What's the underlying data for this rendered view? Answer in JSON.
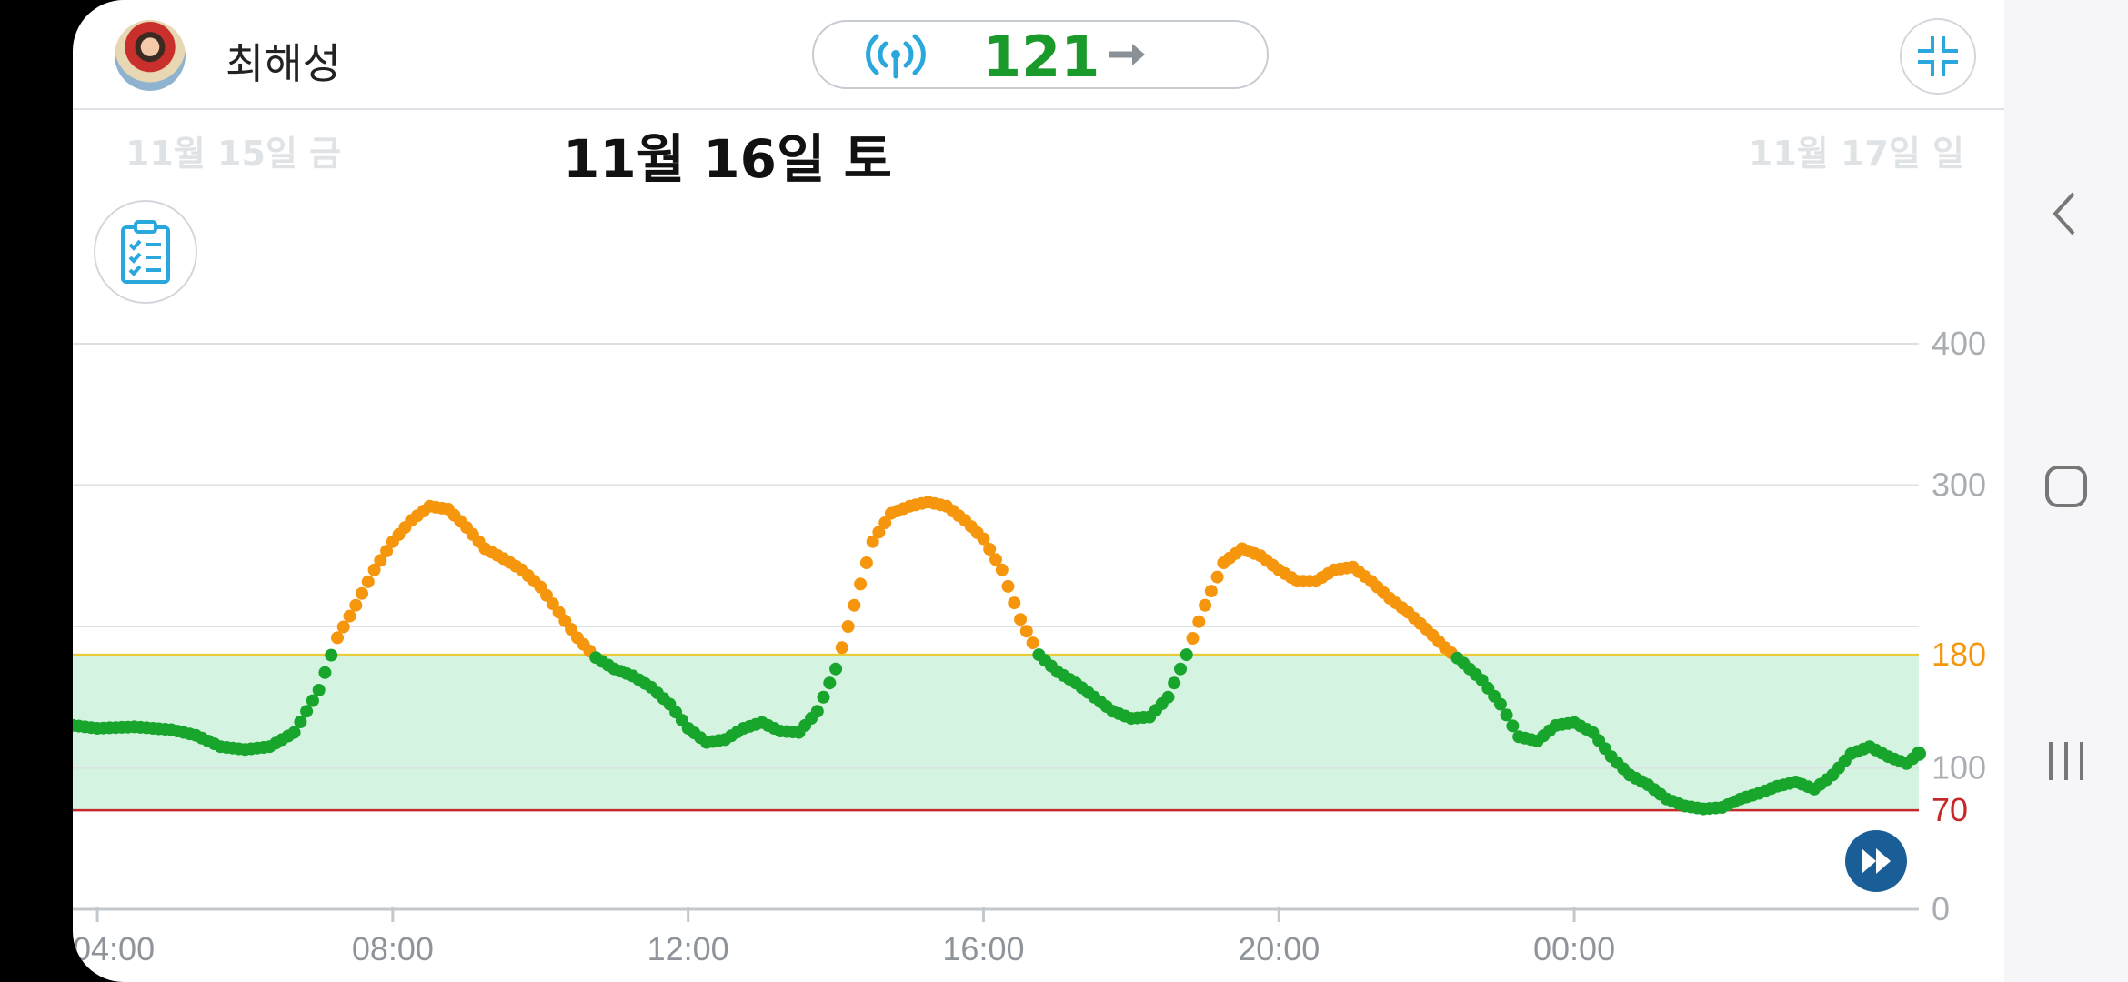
{
  "header": {
    "user_name": "최해성",
    "current_glucose": "121",
    "signal_icon": "signal-broadcast-icon",
    "trend_icon": "trend-arrow-right-icon",
    "collapse_icon": "collapse-fullscreen-icon"
  },
  "date_nav": {
    "prev_label": "11월 15일 금",
    "current_label": "11월 16일 토",
    "next_label": "11월 17일 일"
  },
  "colors": {
    "in_range": "#18a52c",
    "high": "#f5960c",
    "target_band": "#d4f3e0",
    "high_line": "#e8cc3a",
    "low_line": "#c62828",
    "accent_blue": "#1a5e98"
  },
  "chart_data": {
    "type": "scatter",
    "x_start": "03:40",
    "x_end": "03:40 (+1일)",
    "x_ticks": [
      "04:00",
      "08:00",
      "12:00",
      "16:00",
      "20:00",
      "00:00"
    ],
    "y_ticks": [
      "0",
      "70",
      "100",
      "180",
      "300",
      "400"
    ],
    "ylim": [
      0,
      400
    ],
    "target_range": [
      70,
      180
    ],
    "high_threshold": "180",
    "low_threshold": "70",
    "high_threshold_color": "#f5960c",
    "low_threshold_color": "#c62828",
    "series_in_range_color": "#18a52c",
    "series_high_color": "#f5960c",
    "points": [
      [
        "03:40",
        130
      ],
      [
        "04:00",
        128
      ],
      [
        "04:30",
        129
      ],
      [
        "05:00",
        127
      ],
      [
        "05:20",
        123
      ],
      [
        "05:40",
        115
      ],
      [
        "06:00",
        113
      ],
      [
        "06:20",
        115
      ],
      [
        "06:40",
        125
      ],
      [
        "07:00",
        155
      ],
      [
        "07:15",
        192
      ],
      [
        "07:30",
        215
      ],
      [
        "07:45",
        240
      ],
      [
        "08:00",
        260
      ],
      [
        "08:15",
        275
      ],
      [
        "08:30",
        285
      ],
      [
        "08:45",
        283
      ],
      [
        "09:00",
        270
      ],
      [
        "09:15",
        255
      ],
      [
        "09:30",
        248
      ],
      [
        "09:45",
        240
      ],
      [
        "10:00",
        228
      ],
      [
        "10:15",
        210
      ],
      [
        "10:30",
        192
      ],
      [
        "10:45",
        178
      ],
      [
        "11:00",
        170
      ],
      [
        "11:15",
        165
      ],
      [
        "11:30",
        157
      ],
      [
        "11:45",
        145
      ],
      [
        "12:00",
        128
      ],
      [
        "12:15",
        118
      ],
      [
        "12:30",
        120
      ],
      [
        "12:45",
        128
      ],
      [
        "13:00",
        132
      ],
      [
        "13:15",
        126
      ],
      [
        "13:30",
        125
      ],
      [
        "13:45",
        140
      ],
      [
        "14:00",
        170
      ],
      [
        "14:15",
        215
      ],
      [
        "14:30",
        260
      ],
      [
        "14:45",
        280
      ],
      [
        "15:00",
        285
      ],
      [
        "15:15",
        288
      ],
      [
        "15:30",
        285
      ],
      [
        "15:45",
        275
      ],
      [
        "16:00",
        262
      ],
      [
        "16:15",
        240
      ],
      [
        "16:30",
        205
      ],
      [
        "16:45",
        180
      ],
      [
        "17:00",
        168
      ],
      [
        "17:15",
        160
      ],
      [
        "17:30",
        150
      ],
      [
        "17:45",
        140
      ],
      [
        "18:00",
        135
      ],
      [
        "18:15",
        136
      ],
      [
        "18:30",
        150
      ],
      [
        "18:45",
        180
      ],
      [
        "19:00",
        215
      ],
      [
        "19:15",
        245
      ],
      [
        "19:30",
        255
      ],
      [
        "19:45",
        250
      ],
      [
        "20:00",
        240
      ],
      [
        "20:15",
        232
      ],
      [
        "20:30",
        232
      ],
      [
        "20:45",
        240
      ],
      [
        "21:00",
        242
      ],
      [
        "21:15",
        232
      ],
      [
        "21:30",
        220
      ],
      [
        "21:45",
        210
      ],
      [
        "22:00",
        198
      ],
      [
        "22:15",
        185
      ],
      [
        "22:30",
        174
      ],
      [
        "22:45",
        162
      ],
      [
        "23:00",
        145
      ],
      [
        "23:15",
        122
      ],
      [
        "23:30",
        119
      ],
      [
        "23:45",
        130
      ],
      [
        "00:00",
        132
      ],
      [
        "00:15",
        125
      ],
      [
        "00:30",
        108
      ],
      [
        "00:45",
        95
      ],
      [
        "01:00",
        88
      ],
      [
        "01:15",
        78
      ],
      [
        "01:30",
        73
      ],
      [
        "01:45",
        71
      ],
      [
        "02:00",
        72
      ],
      [
        "02:15",
        78
      ],
      [
        "02:30",
        82
      ],
      [
        "02:45",
        87
      ],
      [
        "03:00",
        90
      ],
      [
        "03:15",
        85
      ],
      [
        "03:30",
        95
      ],
      [
        "03:45",
        110
      ],
      [
        "04:00",
        115
      ],
      [
        "04:15",
        108
      ],
      [
        "04:30",
        103
      ],
      [
        "04:40",
        110
      ]
    ]
  },
  "fab_icon": "fast-forward-icon",
  "log_icon": "clipboard-checklist-icon"
}
